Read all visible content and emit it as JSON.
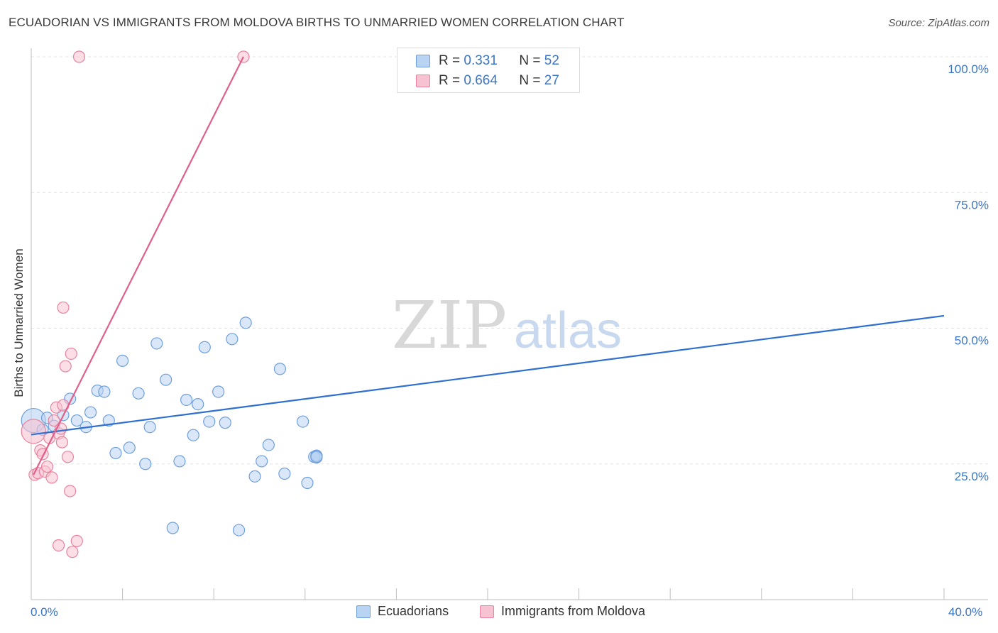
{
  "title": "ECUADORIAN VS IMMIGRANTS FROM MOLDOVA BIRTHS TO UNMARRIED WOMEN CORRELATION CHART",
  "source": "Source: ZipAtlas.com",
  "watermark": {
    "zip": "ZIP",
    "atlas": "atlas"
  },
  "legend_top": {
    "rows": [
      {
        "r_label": "R = ",
        "r_value": "0.331",
        "n_label": "N = ",
        "n_value": "52"
      },
      {
        "r_label": "R = ",
        "r_value": "0.664",
        "n_label": "N = ",
        "n_value": "27"
      }
    ]
  },
  "colors": {
    "ecuadorians_fill": "#b9d3f3",
    "ecuadorians_stroke": "#6f9fdc",
    "ecuadorians_line": "#2e6fd0",
    "moldova_fill": "#f7c3d2",
    "moldova_stroke": "#e9839f",
    "moldova_line": "#e0608a",
    "tick_label": "#3b75c7",
    "grid": "#e2e2e2"
  },
  "chart_data": {
    "type": "scatter",
    "title": "ECUADORIAN VS IMMIGRANTS FROM MOLDOVA BIRTHS TO UNMARRIED WOMEN CORRELATION CHART",
    "xlabel": "",
    "ylabel": "Births to Unmarried Women",
    "xlim": [
      0,
      40
    ],
    "ylim": [
      0,
      100
    ],
    "x_tick_labels": [
      "0.0%",
      "40.0%"
    ],
    "y_ticks": [
      25,
      50,
      75,
      100
    ],
    "y_tick_labels": [
      "25.0%",
      "50.0%",
      "75.0%",
      "100.0%"
    ],
    "grid": true,
    "legend_position": "bottom",
    "series": [
      {
        "name": "Ecuadorians",
        "R": 0.331,
        "N": 52,
        "trend": {
          "x": [
            0,
            40
          ],
          "y": [
            30.4,
            52.3
          ]
        },
        "points": [
          {
            "x": 0.1,
            "y": 33.0,
            "big": true
          },
          {
            "x": 0.5,
            "y": 31.3
          },
          {
            "x": 0.7,
            "y": 33.5
          },
          {
            "x": 1.0,
            "y": 32.0
          },
          {
            "x": 1.4,
            "y": 34.0
          },
          {
            "x": 1.7,
            "y": 37.0
          },
          {
            "x": 2.0,
            "y": 33.0
          },
          {
            "x": 2.4,
            "y": 31.8
          },
          {
            "x": 2.6,
            "y": 34.5
          },
          {
            "x": 2.9,
            "y": 38.5
          },
          {
            "x": 3.2,
            "y": 38.3
          },
          {
            "x": 3.4,
            "y": 33.0
          },
          {
            "x": 3.7,
            "y": 27.0
          },
          {
            "x": 4.0,
            "y": 44.0
          },
          {
            "x": 4.3,
            "y": 28.0
          },
          {
            "x": 4.7,
            "y": 38.0
          },
          {
            "x": 5.0,
            "y": 25.0
          },
          {
            "x": 5.2,
            "y": 31.8
          },
          {
            "x": 5.5,
            "y": 47.2
          },
          {
            "x": 5.9,
            "y": 40.5
          },
          {
            "x": 6.2,
            "y": 13.2
          },
          {
            "x": 6.5,
            "y": 25.5
          },
          {
            "x": 6.8,
            "y": 36.8
          },
          {
            "x": 7.1,
            "y": 30.3
          },
          {
            "x": 7.3,
            "y": 36.0
          },
          {
            "x": 7.6,
            "y": 46.5
          },
          {
            "x": 7.8,
            "y": 32.8
          },
          {
            "x": 8.2,
            "y": 38.3
          },
          {
            "x": 8.5,
            "y": 32.6
          },
          {
            "x": 8.8,
            "y": 48.0
          },
          {
            "x": 9.1,
            "y": 12.8
          },
          {
            "x": 9.4,
            "y": 51.0
          },
          {
            "x": 9.8,
            "y": 22.7
          },
          {
            "x": 10.1,
            "y": 25.5
          },
          {
            "x": 10.4,
            "y": 28.5
          },
          {
            "x": 10.9,
            "y": 42.5
          },
          {
            "x": 11.1,
            "y": 23.2
          },
          {
            "x": 11.9,
            "y": 32.8
          },
          {
            "x": 12.1,
            "y": 21.5
          },
          {
            "x": 12.5,
            "y": 26.5
          },
          {
            "x": 12.5,
            "y": 26.4
          },
          {
            "x": 12.5,
            "y": 26.2
          },
          {
            "x": 12.4,
            "y": 26.3
          },
          {
            "x": 12.5,
            "y": 26.5
          },
          {
            "x": 12.5,
            "y": 26.3
          }
        ]
      },
      {
        "name": "Immigrants from Moldova",
        "R": 0.664,
        "N": 27,
        "trend": {
          "x": [
            0.1,
            9.3
          ],
          "y": [
            23.0,
            100.0
          ]
        },
        "points": [
          {
            "x": 0.1,
            "y": 31.0,
            "big": true
          },
          {
            "x": 0.15,
            "y": 23.0
          },
          {
            "x": 0.3,
            "y": 23.3
          },
          {
            "x": 0.4,
            "y": 27.5
          },
          {
            "x": 0.5,
            "y": 26.8
          },
          {
            "x": 0.6,
            "y": 23.6
          },
          {
            "x": 0.7,
            "y": 24.5
          },
          {
            "x": 0.8,
            "y": 29.8
          },
          {
            "x": 0.9,
            "y": 22.5
          },
          {
            "x": 1.0,
            "y": 33.0
          },
          {
            "x": 1.1,
            "y": 35.4
          },
          {
            "x": 1.2,
            "y": 30.6
          },
          {
            "x": 1.3,
            "y": 31.5
          },
          {
            "x": 1.35,
            "y": 29.0
          },
          {
            "x": 1.2,
            "y": 10.0
          },
          {
            "x": 1.4,
            "y": 35.8
          },
          {
            "x": 1.4,
            "y": 53.8
          },
          {
            "x": 1.5,
            "y": 43.0
          },
          {
            "x": 1.6,
            "y": 26.3
          },
          {
            "x": 1.7,
            "y": 20.0
          },
          {
            "x": 1.75,
            "y": 45.3
          },
          {
            "x": 1.8,
            "y": 8.8
          },
          {
            "x": 2.0,
            "y": 10.8
          },
          {
            "x": 2.1,
            "y": 100.0
          },
          {
            "x": 9.3,
            "y": 100.0
          }
        ]
      }
    ]
  },
  "legend_bottom": [
    "Ecuadorians",
    "Immigrants from Moldova"
  ]
}
